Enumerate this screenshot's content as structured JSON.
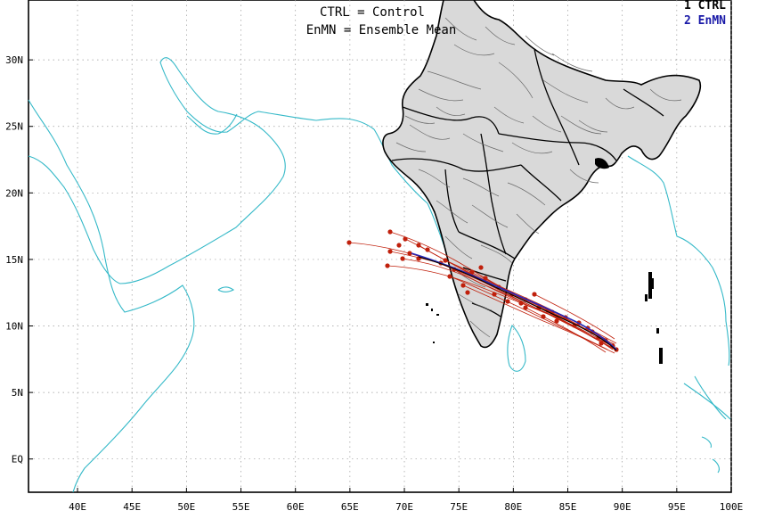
{
  "header": {
    "line1": "CTRL = Control",
    "line2": "EnMN = Ensemble Mean"
  },
  "legend": [
    {
      "label": "1 CTRL",
      "color": "#000000"
    },
    {
      "label": "2 EnMN",
      "color": "#1a1aa8"
    }
  ],
  "axes": {
    "x_ticks": [
      "40E",
      "45E",
      "50E",
      "55E",
      "60E",
      "65E",
      "70E",
      "75E",
      "80E",
      "85E",
      "90E",
      "95E",
      "100E"
    ],
    "y_ticks": [
      "EQ",
      "5N",
      "10N",
      "15N",
      "20N",
      "25N",
      "30N"
    ],
    "x_range_deg": [
      35.5,
      100
    ],
    "y_range_deg": [
      -2.5,
      34.5
    ],
    "grid": "dotted"
  },
  "colors": {
    "coast": "#35b9c8",
    "boundary": "#000000",
    "district": "#6a6a6a",
    "land_fill": "#d6d6d6",
    "track": "#c0200c",
    "ensemble_mean": "#2828b8"
  }
}
